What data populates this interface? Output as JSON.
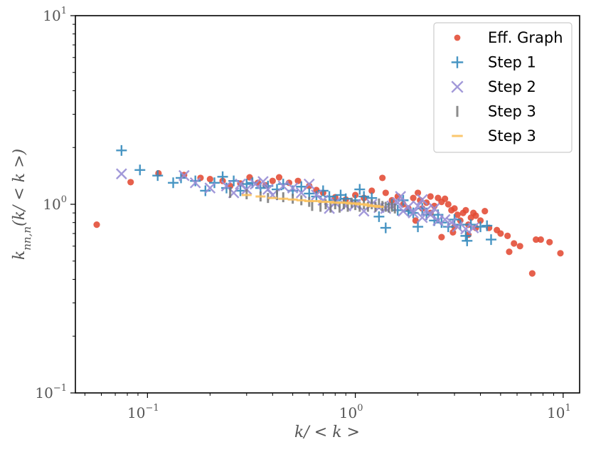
{
  "chart_data": {
    "type": "scatter",
    "title": "",
    "xlabel": "k/ < k >",
    "ylabel": "k_{nn,n}(k/ < k >)",
    "xscale": "log",
    "yscale": "log",
    "xlim": [
      0.045,
      12
    ],
    "ylim": [
      0.1,
      10
    ],
    "grid": false,
    "legend_position": "top-right",
    "x_ticks": [
      {
        "value": 0.1,
        "base": "10",
        "exp": "−1"
      },
      {
        "value": 1,
        "base": "10",
        "exp": "0"
      },
      {
        "value": 10,
        "base": "10",
        "exp": "1"
      }
    ],
    "y_ticks": [
      {
        "value": 0.1,
        "base": "10",
        "exp": "−1"
      },
      {
        "value": 1,
        "base": "10",
        "exp": "0"
      },
      {
        "value": 10,
        "base": "10",
        "exp": "1"
      }
    ],
    "series": [
      {
        "name": "Eff. Graph",
        "marker": "circle",
        "color": "#e24a33",
        "points": [
          [
            0.057,
            0.78
          ],
          [
            0.083,
            1.31
          ],
          [
            0.113,
            1.46
          ],
          [
            0.15,
            1.43
          ],
          [
            0.18,
            1.38
          ],
          [
            0.2,
            1.36
          ],
          [
            0.23,
            1.33
          ],
          [
            0.25,
            1.25
          ],
          [
            0.28,
            1.29
          ],
          [
            0.31,
            1.39
          ],
          [
            0.34,
            1.3
          ],
          [
            0.37,
            1.26
          ],
          [
            0.4,
            1.33
          ],
          [
            0.43,
            1.39
          ],
          [
            0.48,
            1.3
          ],
          [
            0.53,
            1.33
          ],
          [
            0.6,
            1.25
          ],
          [
            0.65,
            1.19
          ],
          [
            0.7,
            1.15
          ],
          [
            0.8,
            1.09
          ],
          [
            0.9,
            1.06
          ],
          [
            1.0,
            1.12
          ],
          [
            1.1,
            1.08
          ],
          [
            1.2,
            1.18
          ],
          [
            1.35,
            1.38
          ],
          [
            1.4,
            1.15
          ],
          [
            1.5,
            1.05
          ],
          [
            1.6,
            1.1
          ],
          [
            1.7,
            1.0
          ],
          [
            1.8,
            0.95
          ],
          [
            1.9,
            1.08
          ],
          [
            2.0,
            1.15
          ],
          [
            2.05,
            1.05
          ],
          [
            2.1,
            0.95
          ],
          [
            2.2,
            1.02
          ],
          [
            2.3,
            1.1
          ],
          [
            2.4,
            0.98
          ],
          [
            2.5,
            1.08
          ],
          [
            2.6,
            1.03
          ],
          [
            2.7,
            1.07
          ],
          [
            2.8,
            1.0
          ],
          [
            2.9,
            0.93
          ],
          [
            3.0,
            0.95
          ],
          [
            3.1,
            0.88
          ],
          [
            3.2,
            0.82
          ],
          [
            3.3,
            0.9
          ],
          [
            3.4,
            0.93
          ],
          [
            3.5,
            0.78
          ],
          [
            3.6,
            0.85
          ],
          [
            3.7,
            0.9
          ],
          [
            3.8,
            0.87
          ],
          [
            4.0,
            0.82
          ],
          [
            4.2,
            0.92
          ],
          [
            4.4,
            0.75
          ],
          [
            2.6,
            0.67
          ],
          [
            2.95,
            0.71
          ],
          [
            3.5,
            0.69
          ],
          [
            3.0,
            0.76
          ],
          [
            4.8,
            0.73
          ],
          [
            5.0,
            0.7
          ],
          [
            5.4,
            0.68
          ],
          [
            5.8,
            0.62
          ],
          [
            6.2,
            0.6
          ],
          [
            5.5,
            0.56
          ],
          [
            7.1,
            0.43
          ],
          [
            7.4,
            0.65
          ],
          [
            7.8,
            0.65
          ],
          [
            8.6,
            0.63
          ],
          [
            9.7,
            0.55
          ],
          [
            3.8,
            0.75
          ],
          [
            2.3,
            0.9
          ],
          [
            1.95,
            0.82
          ]
        ]
      },
      {
        "name": "Step 1",
        "marker": "plus",
        "color": "#348abd",
        "points": [
          [
            0.075,
            1.93
          ],
          [
            0.092,
            1.52
          ],
          [
            0.112,
            1.42
          ],
          [
            0.133,
            1.3
          ],
          [
            0.145,
            1.38
          ],
          [
            0.17,
            1.33
          ],
          [
            0.19,
            1.18
          ],
          [
            0.21,
            1.3
          ],
          [
            0.23,
            1.4
          ],
          [
            0.24,
            1.22
          ],
          [
            0.26,
            1.33
          ],
          [
            0.28,
            1.18
          ],
          [
            0.3,
            1.28
          ],
          [
            0.32,
            1.3
          ],
          [
            0.35,
            1.22
          ],
          [
            0.38,
            1.25
          ],
          [
            0.42,
            1.2
          ],
          [
            0.45,
            1.28
          ],
          [
            0.5,
            1.18
          ],
          [
            0.55,
            1.24
          ],
          [
            0.6,
            1.14
          ],
          [
            0.65,
            1.1
          ],
          [
            0.7,
            1.18
          ],
          [
            0.75,
            1.1
          ],
          [
            0.8,
            1.05
          ],
          [
            0.85,
            1.12
          ],
          [
            0.9,
            1.07
          ],
          [
            1.0,
            1.05
          ],
          [
            1.05,
            1.2
          ],
          [
            1.1,
            1.1
          ],
          [
            1.2,
            1.08
          ],
          [
            1.3,
            0.86
          ],
          [
            1.4,
            0.75
          ],
          [
            1.5,
            1.0
          ],
          [
            1.6,
            0.93
          ],
          [
            1.7,
            1.05
          ],
          [
            1.8,
            0.92
          ],
          [
            1.9,
            0.9
          ],
          [
            2.0,
            0.76
          ],
          [
            2.1,
            0.95
          ],
          [
            2.2,
            0.88
          ],
          [
            2.4,
            0.82
          ],
          [
            2.5,
            0.88
          ],
          [
            2.6,
            0.8
          ],
          [
            2.8,
            0.76
          ],
          [
            3.0,
            0.83
          ],
          [
            3.2,
            0.78
          ],
          [
            3.4,
            0.68
          ],
          [
            3.45,
            0.64
          ],
          [
            3.6,
            0.78
          ],
          [
            4.0,
            0.76
          ],
          [
            4.3,
            0.77
          ],
          [
            4.5,
            0.65
          ]
        ]
      },
      {
        "name": "Step 2",
        "marker": "x",
        "color": "#988ed5",
        "points": [
          [
            0.075,
            1.45
          ],
          [
            0.15,
            1.42
          ],
          [
            0.17,
            1.3
          ],
          [
            0.2,
            1.22
          ],
          [
            0.24,
            1.25
          ],
          [
            0.26,
            1.15
          ],
          [
            0.28,
            1.28
          ],
          [
            0.3,
            1.2
          ],
          [
            0.33,
            1.28
          ],
          [
            0.36,
            1.32
          ],
          [
            0.38,
            1.2
          ],
          [
            0.4,
            1.12
          ],
          [
            0.45,
            1.25
          ],
          [
            0.5,
            1.22
          ],
          [
            0.55,
            1.15
          ],
          [
            0.6,
            1.28
          ],
          [
            0.65,
            1.12
          ],
          [
            0.7,
            1.05
          ],
          [
            0.75,
            0.95
          ],
          [
            0.8,
            1.02
          ],
          [
            0.9,
            0.98
          ],
          [
            1.0,
            1.0
          ],
          [
            1.1,
            0.92
          ],
          [
            1.2,
            1.0
          ],
          [
            1.3,
            0.96
          ],
          [
            1.4,
            0.95
          ],
          [
            1.5,
            0.98
          ],
          [
            1.6,
            1.02
          ],
          [
            1.7,
            0.92
          ],
          [
            1.8,
            0.97
          ],
          [
            1.9,
            0.9
          ],
          [
            2.0,
            0.98
          ],
          [
            2.1,
            0.85
          ],
          [
            2.2,
            0.93
          ],
          [
            2.3,
            0.88
          ],
          [
            2.5,
            0.82
          ],
          [
            2.7,
            0.83
          ],
          [
            2.9,
            0.8
          ],
          [
            3.1,
            0.76
          ],
          [
            3.4,
            0.74
          ],
          [
            3.7,
            0.75
          ],
          [
            1.65,
            1.1
          ],
          [
            2.1,
            1.06
          ],
          [
            2.4,
            0.95
          ]
        ]
      },
      {
        "name": "Step 3",
        "marker": "vline",
        "color": "#777777",
        "points": [
          [
            0.25,
            1.15
          ],
          [
            0.3,
            1.13
          ],
          [
            0.35,
            1.1
          ],
          [
            0.38,
            1.08
          ],
          [
            0.42,
            1.12
          ],
          [
            0.45,
            1.09
          ],
          [
            0.5,
            1.07
          ],
          [
            0.55,
            1.05
          ],
          [
            0.6,
            1.03
          ],
          [
            0.62,
            0.98
          ],
          [
            0.68,
            0.97
          ],
          [
            0.72,
            1.0
          ],
          [
            0.76,
            0.96
          ],
          [
            0.8,
            1.0
          ],
          [
            0.84,
            0.96
          ],
          [
            0.88,
            1.0
          ],
          [
            0.92,
            0.97
          ],
          [
            0.96,
            1.02
          ],
          [
            1.0,
            0.99
          ],
          [
            1.05,
            0.97
          ],
          [
            1.1,
            1.0
          ],
          [
            1.15,
            0.97
          ],
          [
            1.2,
            1.0
          ],
          [
            1.25,
            0.97
          ],
          [
            1.3,
            1.01
          ],
          [
            1.35,
            0.98
          ],
          [
            1.4,
            0.97
          ],
          [
            1.45,
            0.96
          ],
          [
            1.5,
            0.97
          ],
          [
            1.55,
            0.95
          ]
        ]
      },
      {
        "name": "Step 3",
        "marker": "hline",
        "color": "#fbc15e",
        "points": [
          [
            0.3,
            1.12
          ],
          [
            0.35,
            1.1
          ],
          [
            0.4,
            1.08
          ],
          [
            0.45,
            1.07
          ],
          [
            0.5,
            1.06
          ],
          [
            0.55,
            1.05
          ],
          [
            0.6,
            1.04
          ],
          [
            0.65,
            1.04
          ],
          [
            0.7,
            1.03
          ],
          [
            0.75,
            1.03
          ],
          [
            0.8,
            1.02
          ],
          [
            0.85,
            1.02
          ],
          [
            0.9,
            1.02
          ],
          [
            0.95,
            1.01
          ],
          [
            1.0,
            1.01
          ],
          [
            1.05,
            1.0
          ],
          [
            1.1,
            1.0
          ],
          [
            1.15,
            0.99
          ],
          [
            1.2,
            0.98
          ],
          [
            1.25,
            0.98
          ],
          [
            1.3,
            0.97
          ]
        ]
      }
    ]
  }
}
